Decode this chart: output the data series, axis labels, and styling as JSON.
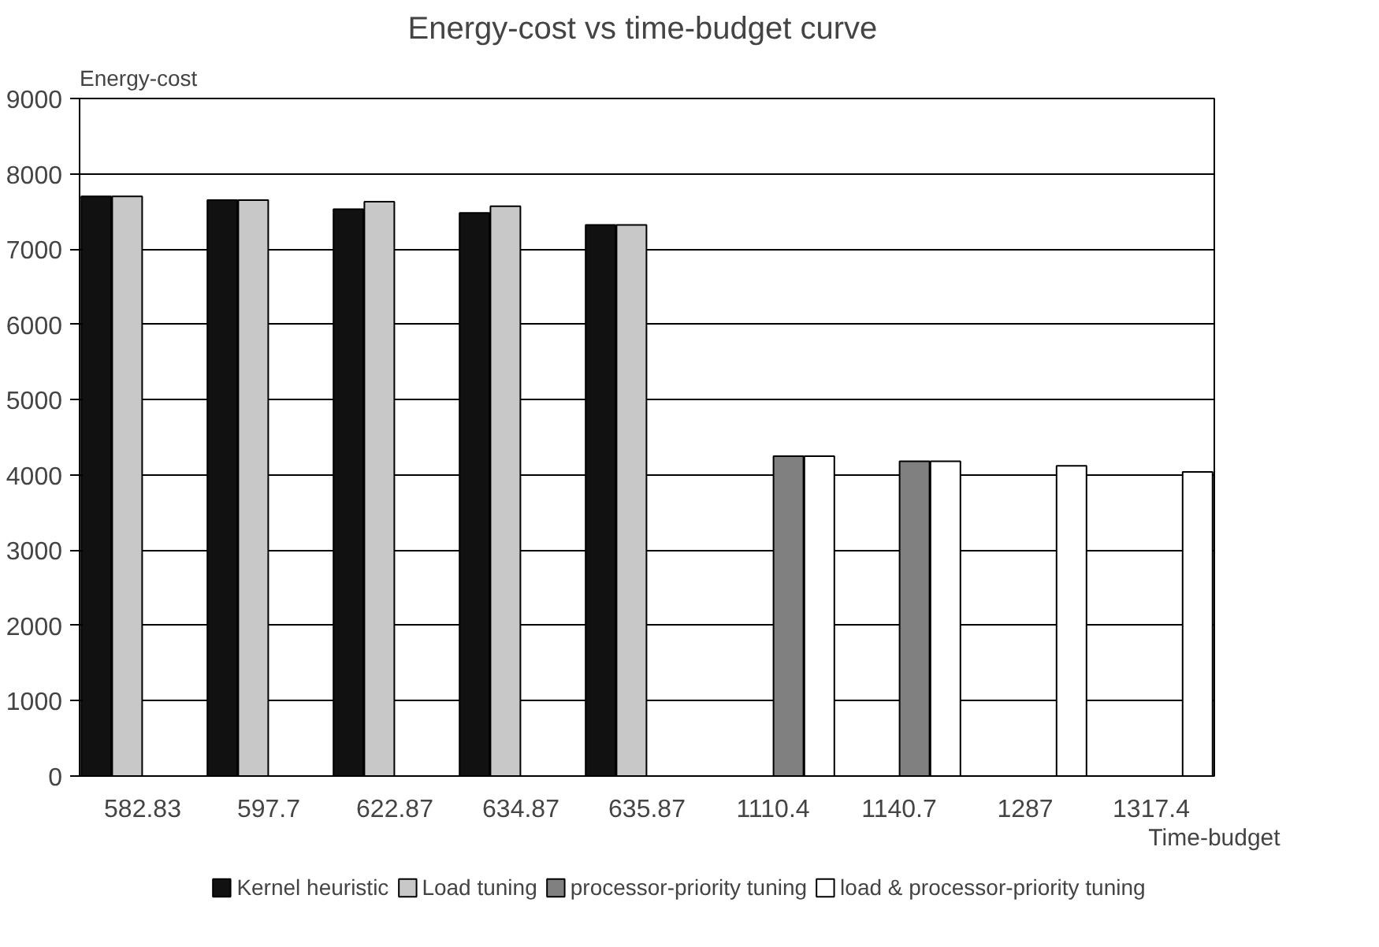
{
  "chart_data": {
    "type": "bar",
    "title": "Energy-cost vs  time-budget curve",
    "xlabel": "Time-budget",
    "ylabel": "Energy-cost",
    "categories": [
      "582.83",
      "597.7",
      "622.87",
      "634.87",
      "635.87",
      "1110.4",
      "1140.7",
      "1287",
      "1317.4"
    ],
    "series": [
      {
        "name": "Kernel heuristic",
        "color": "#111111",
        "values": [
          7700,
          7650,
          7530,
          7480,
          7320,
          null,
          null,
          null,
          null
        ]
      },
      {
        "name": "Load tuning",
        "color": "#c8c8c8",
        "values": [
          7700,
          7650,
          7630,
          7570,
          7320,
          null,
          null,
          null,
          null
        ]
      },
      {
        "name": "processor-priority tuning",
        "color": "#808080",
        "values": [
          null,
          null,
          null,
          null,
          null,
          4250,
          4180,
          null,
          null
        ]
      },
      {
        "name": "load & processor-priority tuning",
        "color": "#ffffff",
        "values": [
          null,
          null,
          null,
          null,
          null,
          4250,
          4180,
          4120,
          4040
        ]
      }
    ],
    "ylim": [
      0,
      9000
    ],
    "yticks": [
      0,
      1000,
      2000,
      3000,
      4000,
      5000,
      6000,
      7000,
      8000,
      9000
    ],
    "grid": "y",
    "legend": "bottom"
  }
}
